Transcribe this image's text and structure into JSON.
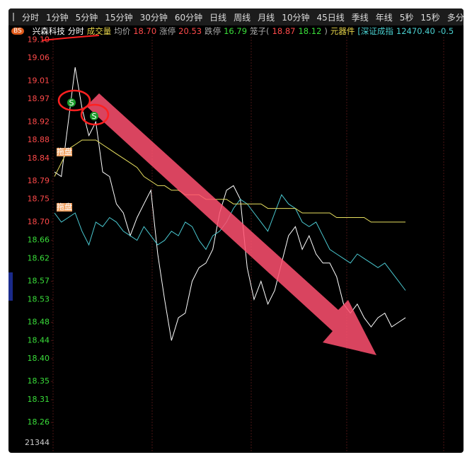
{
  "toolbar": {
    "tabs": [
      "分时",
      "1分钟",
      "5分钟",
      "15分钟",
      "30分钟",
      "60分钟",
      "日线",
      "周线",
      "月线",
      "10分钟",
      "45日线",
      "季线",
      "年线",
      "5秒",
      "15秒",
      "多分时"
    ]
  },
  "info_bar": {
    "badge": "BS",
    "items": [
      {
        "text": "兴森科技",
        "color": "#ffffff"
      },
      {
        "text": "分时",
        "color": "#ffffff"
      },
      {
        "text": "成交量",
        "color": "#e8d64a"
      },
      {
        "text": "均价",
        "color": "#aaaaaa"
      },
      {
        "text": "18.70",
        "color": "#ff4a4a"
      },
      {
        "text": "涨停",
        "color": "#aaaaaa"
      },
      {
        "text": "20.53",
        "color": "#ff4a4a"
      },
      {
        "text": "跌停",
        "color": "#aaaaaa"
      },
      {
        "text": "16.79",
        "color": "#3adf3a"
      },
      {
        "text": "笼子(",
        "color": "#aaaaaa"
      },
      {
        "text": "18.87",
        "color": "#ff4a4a"
      },
      {
        "text": "18.12",
        "color": "#3adf3a"
      },
      {
        "text": ")",
        "color": "#aaaaaa"
      },
      {
        "text": "元器件",
        "color": "#e8d64a"
      },
      {
        "text": "[深证成指",
        "color": "#4ad0d0"
      },
      {
        "text": "12470.40",
        "color": "#4ad0d0"
      },
      {
        "text": "-0.5",
        "color": "#4ad0d0"
      }
    ]
  },
  "chart_data": {
    "type": "line",
    "ylim": [
      18.24,
      19.11
    ],
    "yticks": [
      {
        "value": 19.1,
        "label": "19.10"
      },
      19.06,
      19.01,
      18.97,
      18.92,
      18.88,
      18.84,
      18.79,
      18.75,
      {
        "value": 18.7,
        "label": "18.70"
      },
      18.66,
      18.62,
      18.57,
      18.53,
      18.48,
      18.44,
      {
        "value": 18.4,
        "label": "18.40"
      },
      18.35,
      18.31,
      18.26
    ],
    "ytick_colors": [
      "#ff4a4a",
      "#ff4a4a",
      "#ff4a4a",
      "#ff4a4a",
      "#ff4a4a",
      "#ff4a4a",
      "#ff4a4a",
      "#ff4a4a",
      "#ff4a4a",
      "#ff4a4a",
      "#3adf3a",
      "#3adf3a",
      "#3adf3a",
      "#3adf3a",
      "#3adf3a",
      "#3adf3a",
      "#3adf3a",
      "#3adf3a",
      "#3adf3a",
      "#3adf3a"
    ],
    "volume_tick": 21344,
    "series": [
      {
        "color": "#ffffff",
        "values": [
          18.81,
          18.8,
          18.92,
          19.04,
          18.95,
          18.89,
          18.92,
          18.81,
          18.8,
          18.74,
          18.72,
          18.67,
          18.71,
          18.74,
          18.77,
          18.63,
          18.53,
          18.44,
          18.49,
          18.5,
          18.57,
          18.6,
          18.61,
          18.64,
          18.72,
          18.77,
          18.78,
          18.75,
          18.6,
          18.53,
          18.57,
          18.52,
          18.55,
          18.61,
          18.67,
          18.69,
          18.64,
          18.67,
          18.63,
          18.61,
          18.61,
          18.58,
          18.52,
          18.5,
          18.52,
          18.49,
          18.47,
          18.49,
          18.5,
          18.47,
          18.48,
          18.49
        ]
      },
      {
        "color": "#4ac8d0",
        "values": [
          18.72,
          18.7,
          18.71,
          18.72,
          18.68,
          18.65,
          18.7,
          18.69,
          18.71,
          18.7,
          18.68,
          18.67,
          18.66,
          18.69,
          18.67,
          18.65,
          18.66,
          18.68,
          18.67,
          18.7,
          18.69,
          18.66,
          18.64,
          18.67,
          18.68,
          18.7,
          18.73,
          18.75,
          18.74,
          18.72,
          18.7,
          18.68,
          18.72,
          18.76,
          18.74,
          18.73,
          18.7,
          18.69,
          18.7,
          18.67,
          18.64,
          18.63,
          18.62,
          18.61,
          18.63,
          18.62,
          18.61,
          18.6,
          18.61,
          18.59,
          18.57,
          18.55
        ]
      },
      {
        "color": "#e8e060",
        "values": [
          18.8,
          18.83,
          18.86,
          18.87,
          18.88,
          18.88,
          18.88,
          18.87,
          18.86,
          18.85,
          18.84,
          18.83,
          18.82,
          18.8,
          18.79,
          18.78,
          18.78,
          18.77,
          18.77,
          18.76,
          18.76,
          18.76,
          18.75,
          18.75,
          18.75,
          18.75,
          18.74,
          18.74,
          18.74,
          18.74,
          18.74,
          18.73,
          18.73,
          18.73,
          18.73,
          18.73,
          18.72,
          18.72,
          18.72,
          18.72,
          18.72,
          18.71,
          18.71,
          18.71,
          18.71,
          18.71,
          18.7,
          18.7,
          18.7,
          18.7,
          18.7,
          18.7
        ]
      }
    ],
    "annotations": {
      "sell_marks": [
        "S",
        "S"
      ],
      "tags": [
        "拖盘",
        "拖盘"
      ]
    }
  }
}
